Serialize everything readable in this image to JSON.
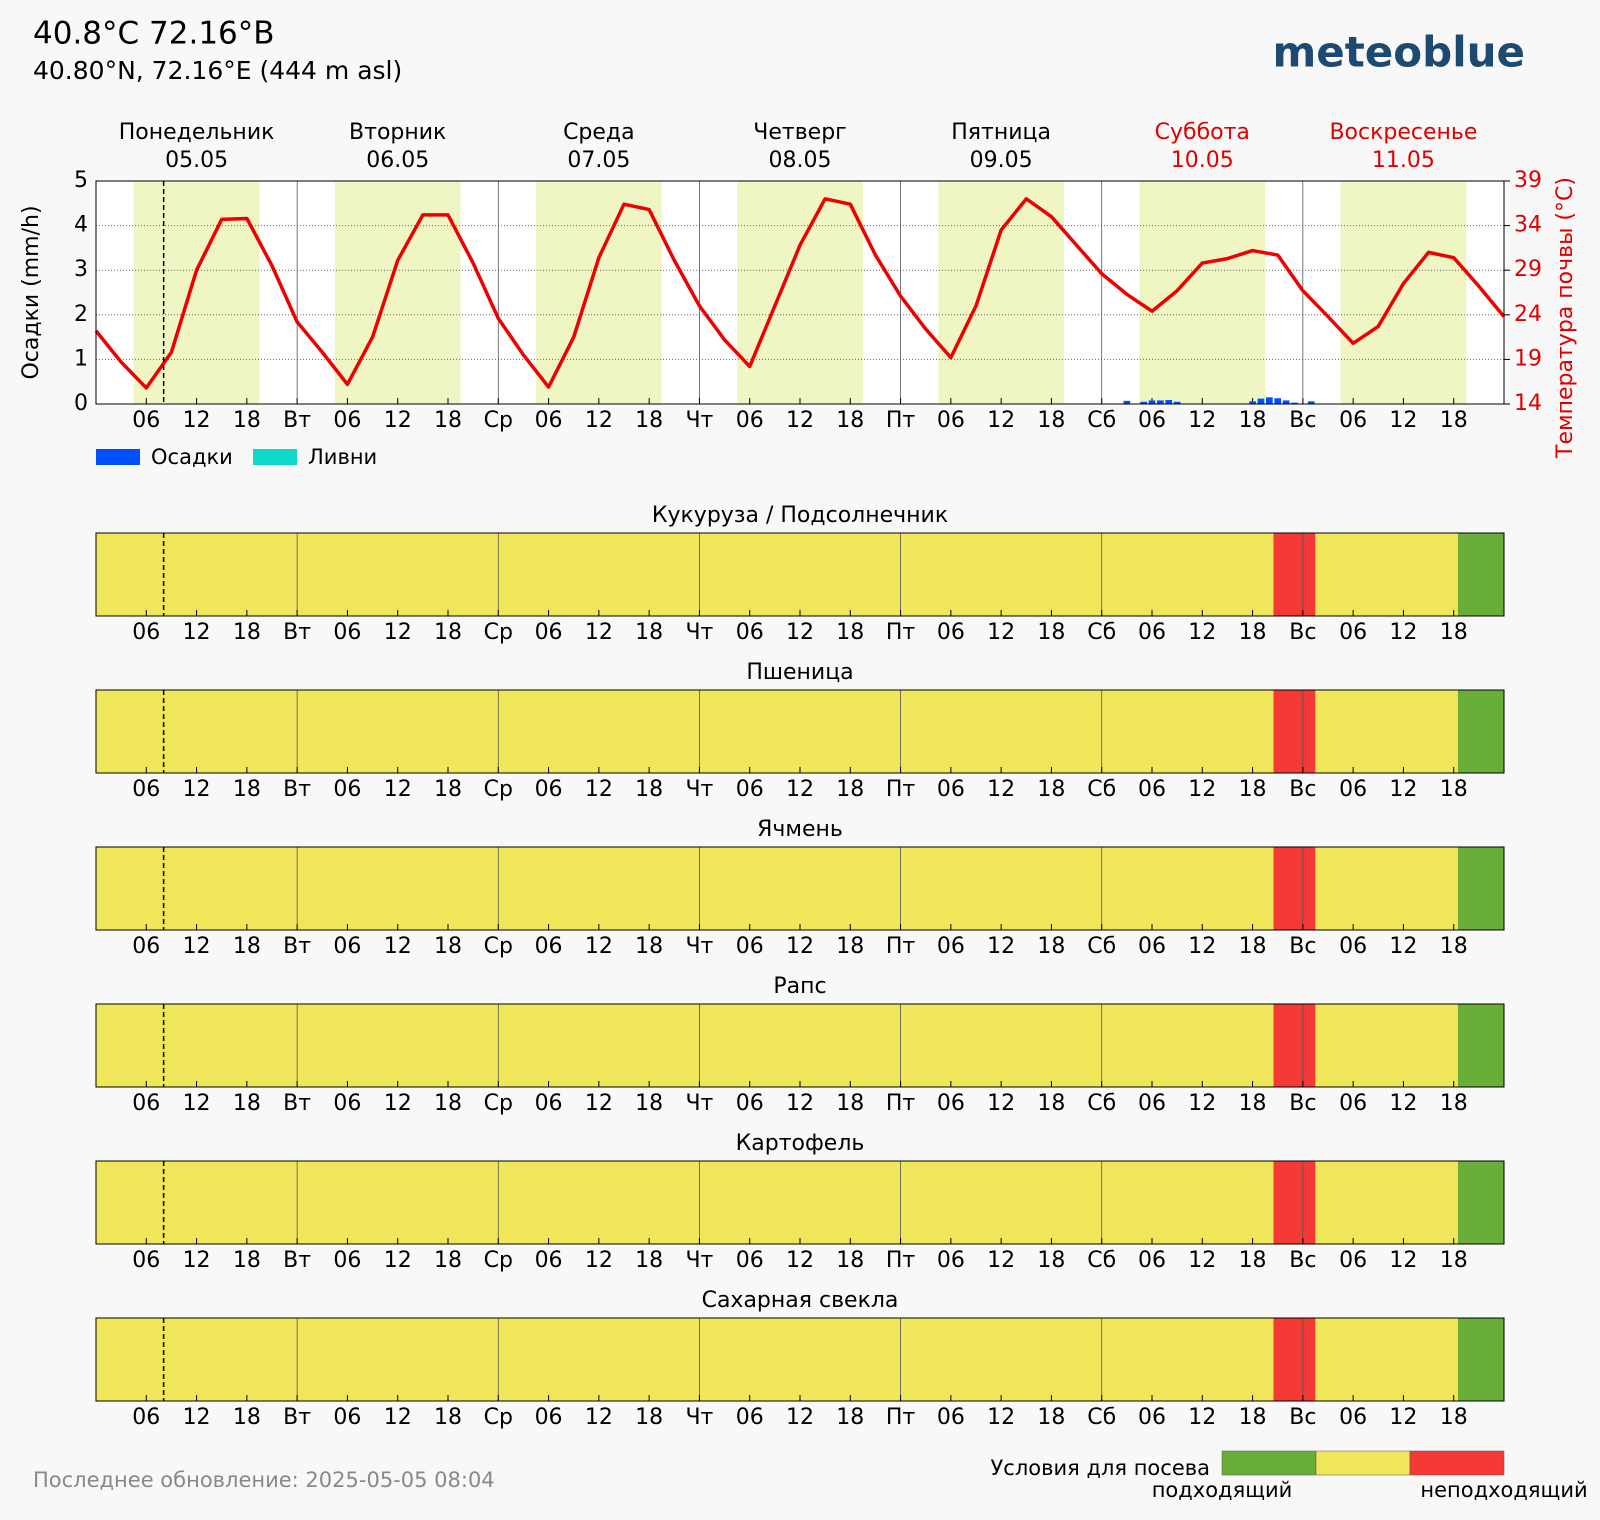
{
  "header": {
    "title": "40.8°C 72.16°B",
    "subtitle": "40.80°N, 72.16°E (444 m asl)",
    "logo": "meteoblue"
  },
  "footer": "Последнее обновление: 2025-05-05 08:04",
  "chart_data": [
    {
      "type": "line",
      "days": [
        {
          "name": "Понедельник",
          "date": "05.05",
          "color": "#000000"
        },
        {
          "name": "Вторник",
          "date": "06.05",
          "color": "#000000"
        },
        {
          "name": "Среда",
          "date": "07.05",
          "color": "#000000"
        },
        {
          "name": "Четверг",
          "date": "08.05",
          "color": "#000000"
        },
        {
          "name": "Пятница",
          "date": "09.05",
          "color": "#000000"
        },
        {
          "name": "Суббота",
          "date": "10.05",
          "color": "#e00000"
        },
        {
          "name": "Воскресенье",
          "date": "11.05",
          "color": "#e00000"
        }
      ],
      "xlim": [
        0,
        168
      ],
      "xticks": [
        {
          "value": 6,
          "label": "06"
        },
        12,
        18,
        {
          "value": 24,
          "label": "Вт"
        },
        {
          "value": 30,
          "label": "06"
        },
        {
          "value": 36,
          "label": "12"
        },
        {
          "value": 42,
          "label": "18"
        },
        {
          "value": 48,
          "label": "Ср"
        },
        {
          "value": 54,
          "label": "06"
        },
        {
          "value": 60,
          "label": "12"
        },
        {
          "value": 66,
          "label": "18"
        },
        {
          "value": 72,
          "label": "Чт"
        },
        {
          "value": 78,
          "label": "06"
        },
        {
          "value": 84,
          "label": "12"
        },
        {
          "value": 90,
          "label": "18"
        },
        {
          "value": 96,
          "label": "Пт"
        },
        {
          "value": 102,
          "label": "06"
        },
        {
          "value": 108,
          "label": "12"
        },
        {
          "value": 114,
          "label": "18"
        },
        {
          "value": 120,
          "label": "Сб"
        },
        {
          "value": 126,
          "label": "06"
        },
        {
          "value": 132,
          "label": "12"
        },
        {
          "value": 138,
          "label": "18"
        },
        {
          "value": 144,
          "label": "Вс"
        },
        {
          "value": 150,
          "label": "06"
        },
        {
          "value": 156,
          "label": "12"
        },
        {
          "value": 162,
          "label": "18"
        }
      ],
      "ylabel": "Осадки (mm/h)",
      "ylim": [
        0,
        5
      ],
      "yticks": [
        0,
        1,
        2,
        3,
        4,
        5
      ],
      "y2label": "Температура почвы (°C)",
      "y2lim": [
        14,
        39
      ],
      "y2ticks": [
        14,
        19,
        24,
        29,
        34,
        39
      ],
      "y2color": "#e00000",
      "grid": true,
      "daylight": [
        [
          4.5,
          19.5
        ],
        [
          28.5,
          43.5
        ],
        [
          52.5,
          67.5
        ],
        [
          76.5,
          91.5
        ],
        [
          100.5,
          115.5
        ],
        [
          124.5,
          139.5
        ],
        [
          148.5,
          163.5
        ]
      ],
      "daylight_color": "#eff6c4",
      "now": 8.07,
      "x": [
        0,
        3,
        6,
        9,
        12,
        15,
        18,
        21,
        24,
        27,
        30,
        33,
        36,
        39,
        42,
        45,
        48,
        51,
        54,
        57,
        60,
        63,
        66,
        69,
        72,
        75,
        78,
        81,
        84,
        87,
        90,
        93,
        96,
        99,
        102,
        105,
        108,
        111,
        114,
        117,
        120,
        123,
        126,
        129,
        132,
        135,
        138,
        141,
        144,
        147,
        150,
        153,
        156,
        159,
        162,
        165,
        168
      ],
      "series": [
        {
          "color": "#ee0000",
          "axis": "y2",
          "values": [
            22.2,
            18.7,
            15.8,
            19.8,
            29.0,
            34.7,
            34.8,
            29.5,
            23.2,
            19.8,
            16.2,
            21.5,
            30.1,
            35.2,
            35.2,
            29.8,
            23.6,
            19.5,
            15.9,
            21.5,
            30.4,
            36.4,
            35.8,
            30.1,
            25.0,
            21.2,
            18.2,
            25.0,
            31.8,
            37.0,
            36.4,
            30.7,
            26.1,
            22.4,
            19.2,
            25.0,
            33.5,
            37.0,
            35.0,
            31.8,
            28.6,
            26.3,
            24.4,
            26.7,
            29.8,
            30.3,
            31.2,
            30.7,
            26.7,
            23.8,
            20.8,
            22.7,
            27.5,
            31.0,
            30.4,
            27.2,
            23.8
          ]
        }
      ],
      "bars": {
        "x": [
          123,
          125,
          126,
          127,
          128,
          129,
          138,
          139,
          140,
          141,
          142,
          143,
          145
        ],
        "series": [
          {
            "name": "Осадки",
            "color": "#0050ff",
            "values": [
              0.07,
              0.05,
              0.08,
              0.08,
              0.09,
              0.05,
              0.06,
              0.12,
              0.15,
              0.13,
              0.08,
              0.03,
              0.06
            ]
          },
          {
            "name": "Ливни",
            "color": "#10d8c8",
            "values": [
              0,
              0,
              0,
              0,
              0,
              0,
              0,
              0,
              0,
              0,
              0,
              0,
              0
            ]
          }
        ]
      }
    },
    {
      "type": "timeline",
      "panels": [
        {
          "title": "Кукуруза / Подсолнечник",
          "segments": [
            {
              "start": 0,
              "end": 140.5,
              "color": "#f0e65a"
            },
            {
              "start": 140.5,
              "end": 145.5,
              "color": "#f53a35"
            },
            {
              "start": 145.5,
              "end": 162.5,
              "color": "#f0e65a"
            },
            {
              "start": 162.5,
              "end": 168,
              "color": "#6aae3a"
            }
          ]
        },
        {
          "title": "Пшеница",
          "segments": [
            {
              "start": 0,
              "end": 140.5,
              "color": "#f0e65a"
            },
            {
              "start": 140.5,
              "end": 145.5,
              "color": "#f53a35"
            },
            {
              "start": 145.5,
              "end": 162.5,
              "color": "#f0e65a"
            },
            {
              "start": 162.5,
              "end": 168,
              "color": "#6aae3a"
            }
          ]
        },
        {
          "title": "Ячмень",
          "segments": [
            {
              "start": 0,
              "end": 140.5,
              "color": "#f0e65a"
            },
            {
              "start": 140.5,
              "end": 145.5,
              "color": "#f53a35"
            },
            {
              "start": 145.5,
              "end": 162.5,
              "color": "#f0e65a"
            },
            {
              "start": 162.5,
              "end": 168,
              "color": "#6aae3a"
            }
          ]
        },
        {
          "title": "Рапс",
          "segments": [
            {
              "start": 0,
              "end": 140.5,
              "color": "#f0e65a"
            },
            {
              "start": 140.5,
              "end": 145.5,
              "color": "#f53a35"
            },
            {
              "start": 145.5,
              "end": 162.5,
              "color": "#f0e65a"
            },
            {
              "start": 162.5,
              "end": 168,
              "color": "#6aae3a"
            }
          ]
        },
        {
          "title": "Картофель",
          "segments": [
            {
              "start": 0,
              "end": 140.5,
              "color": "#f0e65a"
            },
            {
              "start": 140.5,
              "end": 145.5,
              "color": "#f53a35"
            },
            {
              "start": 145.5,
              "end": 162.5,
              "color": "#f0e65a"
            },
            {
              "start": 162.5,
              "end": 168,
              "color": "#6aae3a"
            }
          ]
        },
        {
          "title": "Сахарная свекла",
          "segments": [
            {
              "start": 0,
              "end": 140.5,
              "color": "#f0e65a"
            },
            {
              "start": 140.5,
              "end": 145.5,
              "color": "#f53a35"
            },
            {
              "start": 145.5,
              "end": 162.5,
              "color": "#f0e65a"
            },
            {
              "start": 162.5,
              "end": 168,
              "color": "#6aae3a"
            }
          ]
        }
      ],
      "legend": {
        "title": "Условия для посева",
        "low": "подходящий",
        "high": "неподходящий",
        "colors": [
          "#6aae3a",
          "#f0e65a",
          "#f53a35"
        ]
      }
    }
  ]
}
